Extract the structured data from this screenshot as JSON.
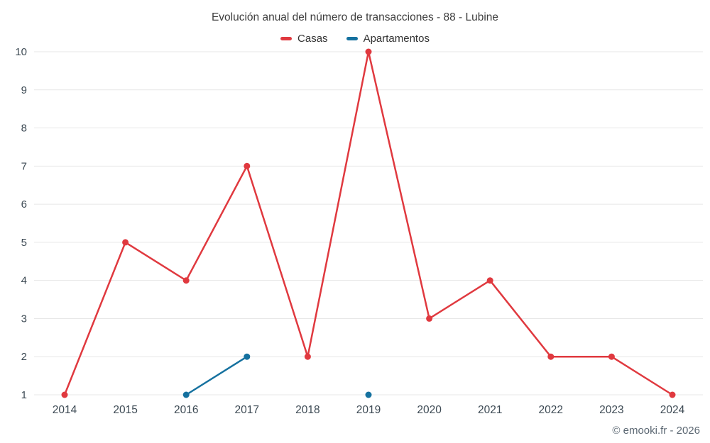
{
  "chart_data": {
    "type": "line",
    "title": "Evolución anual del número de transacciones - 88 - Lubine",
    "categories": [
      "2014",
      "2015",
      "2016",
      "2017",
      "2018",
      "2019",
      "2020",
      "2021",
      "2022",
      "2023",
      "2024"
    ],
    "series": [
      {
        "name": "Casas",
        "color": "#e0393f",
        "values": [
          1,
          5,
          4,
          7,
          2,
          10,
          3,
          4,
          2,
          2,
          1
        ]
      },
      {
        "name": "Apartamentos",
        "color": "#15719f",
        "values": [
          null,
          null,
          1,
          2,
          null,
          1,
          null,
          null,
          null,
          null,
          null
        ]
      }
    ],
    "xlabel": "",
    "ylabel": "",
    "ylim": [
      1,
      10
    ],
    "yticks": [
      1,
      2,
      3,
      4,
      5,
      6,
      7,
      8,
      9,
      10
    ],
    "grid": "horizontal",
    "legend_position": "top",
    "marker": "circle"
  },
  "footer": {
    "credit": "© emooki.fr - 2026"
  }
}
